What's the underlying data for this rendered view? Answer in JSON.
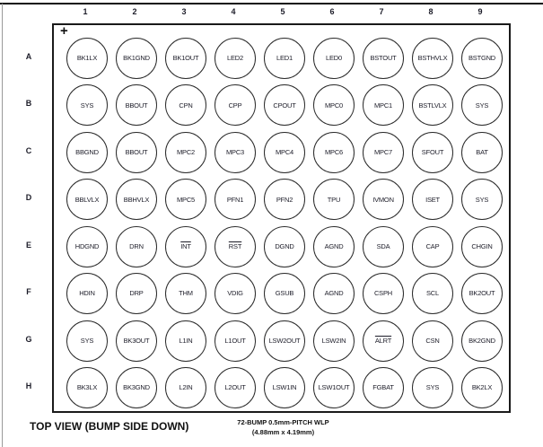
{
  "page": {
    "footer_left": "TOP VIEW (BUMP SIDE DOWN)",
    "footer_center_line1": "72-BUMP 0.5mm-PITCH WLP",
    "footer_center_line2": "(4.88mm x 4.19mm)"
  },
  "grid": {
    "orientation_marker": "+",
    "column_headers": [
      "1",
      "2",
      "3",
      "4",
      "5",
      "6",
      "7",
      "8",
      "9"
    ],
    "row_headers": [
      "A",
      "B",
      "C",
      "D",
      "E",
      "F",
      "G",
      "H"
    ],
    "active_low_labels": [
      "INT",
      "RST",
      "ALRT"
    ],
    "rows": [
      {
        "row": "A",
        "bumps": [
          "BK1LX",
          "BK1GND",
          "BK1OUT",
          "LED2",
          "LED1",
          "LED0",
          "BSTOUT",
          "BSTHVLX",
          "BSTGND"
        ]
      },
      {
        "row": "B",
        "bumps": [
          "SYS",
          "BBOUT",
          "CPN",
          "CPP",
          "CPOUT",
          "MPC0",
          "MPC1",
          "BSTLVLX",
          "SYS"
        ]
      },
      {
        "row": "C",
        "bumps": [
          "BBGND",
          "BBOUT",
          "MPC2",
          "MPC3",
          "MPC4",
          "MPC6",
          "MPC7",
          "SFOUT",
          "BAT"
        ]
      },
      {
        "row": "D",
        "bumps": [
          "BBLVLX",
          "BBHVLX",
          "MPC5",
          "PFN1",
          "PFN2",
          "TPU",
          "IVMON",
          "ISET",
          "SYS"
        ]
      },
      {
        "row": "E",
        "bumps": [
          "HDGND",
          "DRN",
          "INT",
          "RST",
          "DGND",
          "AGND",
          "SDA",
          "CAP",
          "CHGIN"
        ]
      },
      {
        "row": "F",
        "bumps": [
          "HDIN",
          "DRP",
          "THM",
          "VDIG",
          "GSUB",
          "AGND",
          "CSPH",
          "SCL",
          "BK2OUT"
        ]
      },
      {
        "row": "G",
        "bumps": [
          "SYS",
          "BK3OUT",
          "L1IN",
          "L1OUT",
          "LSW2OUT",
          "LSW2IN",
          "ALRT",
          "CSN",
          "BK2GND"
        ]
      },
      {
        "row": "H",
        "bumps": [
          "BK3LX",
          "BK3GND",
          "L2IN",
          "L2OUT",
          "LSW1IN",
          "LSW1OUT",
          "FGBAT",
          "SYS",
          "BK2LX"
        ]
      }
    ]
  }
}
